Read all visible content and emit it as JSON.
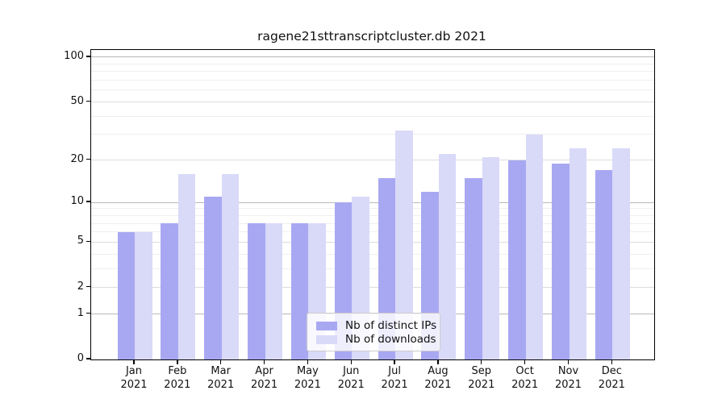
{
  "colors": {
    "bar_ips": "#a8a8f2",
    "bar_downloads": "#d9d9f8",
    "grid_major": "#b9b9b9",
    "grid_mid": "#dcdcdc",
    "grid_minor": "#efefef",
    "axis": "#000000",
    "legend_border": "#cccccc"
  },
  "chart_data": {
    "type": "bar",
    "title": "ragene21sttranscriptcluster.db 2021",
    "x_categories": [
      "Jan",
      "Feb",
      "Mar",
      "Apr",
      "May",
      "Jun",
      "Jul",
      "Aug",
      "Sep",
      "Oct",
      "Nov",
      "Dec"
    ],
    "x_year_line": "2021",
    "series": [
      {
        "name": "Nb of distinct IPs",
        "color_key": "bar_ips",
        "values": [
          6,
          7,
          11,
          7,
          7,
          10,
          15,
          12,
          15,
          20,
          19,
          17
        ]
      },
      {
        "name": "Nb of downloads",
        "color_key": "bar_downloads",
        "values": [
          6,
          16,
          16,
          7,
          7,
          11,
          32,
          22,
          21,
          30,
          24,
          24
        ]
      }
    ],
    "y_scale": "log10(1+x)",
    "y_ticks": [
      100,
      50,
      20,
      10,
      5,
      2,
      1,
      0
    ],
    "y_gridlines": {
      "major": [
        1,
        10,
        100
      ],
      "mid": [
        2,
        5,
        20,
        50
      ],
      "minor": [
        3,
        4,
        6,
        7,
        8,
        9,
        30,
        40,
        60,
        70,
        80,
        90
      ]
    },
    "ylim": [
      0,
      112
    ],
    "grid": "horizontal",
    "legend_position": "bottom-center"
  }
}
